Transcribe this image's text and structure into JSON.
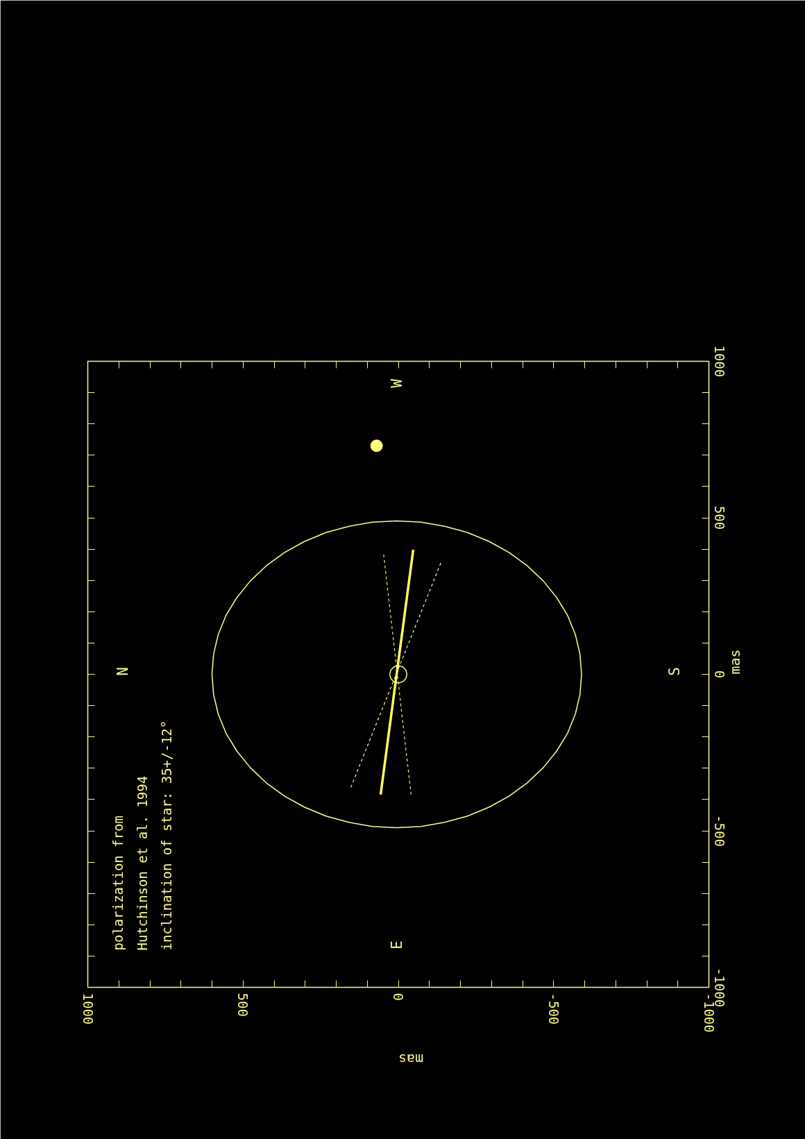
{
  "chart_data": {
    "type": "line",
    "xlabel": "mas",
    "ylabel": "mas",
    "xlim": [
      1000,
      -1000
    ],
    "ylim": [
      -1000,
      1000
    ],
    "xticks": [
      -1000,
      {
        "value": -900,
        "label": null
      },
      {
        "value": -800,
        "label": null
      },
      {
        "value": -700,
        "label": null
      },
      {
        "value": -600,
        "label": null
      },
      -500,
      {
        "value": -400,
        "label": null
      },
      {
        "value": -300,
        "label": null
      },
      {
        "value": -200,
        "label": null
      },
      {
        "value": -100,
        "label": null
      },
      0,
      {
        "value": 100,
        "label": null
      },
      {
        "value": 200,
        "label": null
      },
      {
        "value": 300,
        "label": null
      },
      {
        "value": 400,
        "label": null
      },
      500,
      {
        "value": 600,
        "label": null
      },
      {
        "value": 700,
        "label": null
      },
      {
        "value": 800,
        "label": null
      },
      {
        "value": 900,
        "label": null
      },
      1000
    ],
    "yticks": [
      -1000,
      {
        "value": -900,
        "label": null
      },
      {
        "value": -800,
        "label": null
      },
      {
        "value": -700,
        "label": null
      },
      {
        "value": -600,
        "label": null
      },
      -500,
      {
        "value": -400,
        "label": null
      },
      {
        "value": -300,
        "label": null
      },
      {
        "value": -200,
        "label": null
      },
      {
        "value": -100,
        "label": null
      },
      0,
      {
        "value": 100,
        "label": null
      },
      {
        "value": 200,
        "label": null
      },
      {
        "value": 300,
        "label": null
      },
      {
        "value": 400,
        "label": null
      },
      500,
      {
        "value": 600,
        "label": null
      },
      {
        "value": 700,
        "label": null
      },
      {
        "value": 800,
        "label": null
      },
      {
        "value": 900,
        "label": null
      },
      1000
    ],
    "grid": false,
    "series": [
      {
        "color": "#ffff88",
        "line_style": "solid",
        "x": [
          600,
          595,
          580,
          555,
          520,
          477,
          426,
          367,
          303,
          233,
          159,
          83,
          5,
          -73,
          -149,
          -223,
          -293,
          -357,
          -416,
          -467,
          -510,
          -545,
          -570,
          -585,
          -590
        ],
        "values": [
          0,
          64,
          127,
          188,
          245,
          298,
          346,
          389,
          424,
          453,
          473,
          486,
          490,
          486,
          473,
          453,
          424,
          389,
          346,
          298,
          245,
          188,
          127,
          64,
          0
        ]
      },
      {
        "color": "#ffff98",
        "line_style": "solid",
        "x": [
          -590,
          -585,
          -570,
          -545,
          -510,
          -467,
          -416,
          -357,
          -293,
          -223,
          -149,
          -73,
          5,
          83,
          159,
          233,
          303,
          367,
          426,
          477,
          520,
          555,
          580,
          595,
          600
        ],
        "values": [
          0,
          -64,
          -127,
          -188,
          -245,
          -298,
          -346,
          -389,
          -424,
          -453,
          -473,
          -486,
          -490,
          -486,
          -473,
          -453,
          -424,
          -389,
          -346,
          -298,
          -245,
          -188,
          -127,
          -64,
          0
        ]
      },
      {
        "color": "#ffff60",
        "line_style": "solid",
        "x": [
          57,
          -48
        ],
        "values": [
          -384,
          398
        ]
      },
      {
        "color": "#ffffa8",
        "line_style": "dashed",
        "x": [
          153,
          -139
        ],
        "values": [
          -361,
          361
        ]
      },
      {
        "color": "#f0f090",
        "line_style": "dashed",
        "x": [
          -41,
          48
        ],
        "values": [
          -384,
          389
        ]
      },
      {
        "color": "#ffff70",
        "line_style": "solid",
        "x": [
          28,
          24,
          14,
          0,
          -14,
          -24,
          -28
        ],
        "values": [
          0,
          14,
          24,
          28,
          24,
          14,
          0
        ]
      },
      {
        "color": "#fafa68",
        "line_style": "solid",
        "x": [
          -28,
          -24,
          -14,
          0,
          14,
          24,
          28
        ],
        "values": [
          0,
          -14,
          -24,
          -28,
          -24,
          -14,
          0
        ]
      },
      {
        "type": "scatter",
        "color": "#ffff78",
        "marker": "circle",
        "x": [
          70
        ],
        "values": [
          730
        ]
      }
    ],
    "annotations": [
      "polarization from\nHutchinson et al. 1994\ninclination of star: 35+/-12°",
      "N",
      "S",
      "E",
      "W"
    ]
  }
}
